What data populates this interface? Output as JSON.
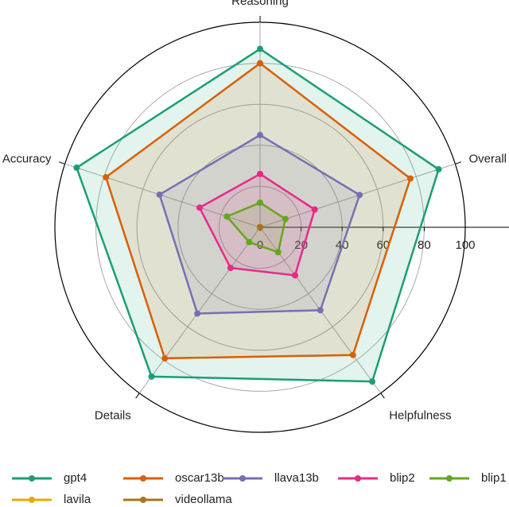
{
  "chart_data": {
    "type": "radar",
    "categories": [
      "Reasoning",
      "Overall",
      "Helpfulness",
      "Details",
      "Accuracy"
    ],
    "rlim": [
      0,
      100
    ],
    "rticks": [
      0,
      20,
      40,
      60,
      80,
      100
    ],
    "grid": true,
    "legend": "bottom",
    "series": [
      {
        "name": "gpt4",
        "color": "#1b9e77",
        "values": [
          87,
          91.5,
          93,
          90,
          94
        ]
      },
      {
        "name": "oscar13b",
        "color": "#d95f02",
        "values": [
          80,
          77,
          77,
          79,
          79
        ]
      },
      {
        "name": "llava13b",
        "color": "#7570b3",
        "values": [
          45,
          51,
          50,
          52,
          51.5
        ]
      },
      {
        "name": "blip2",
        "color": "#e7298a",
        "values": [
          26,
          28,
          29,
          24.5,
          31
        ]
      },
      {
        "name": "blip1",
        "color": "#66a61e",
        "values": [
          12,
          13,
          15,
          9,
          17
        ]
      },
      {
        "name": "lavila",
        "color": "#e6ab02",
        "values": [
          0,
          0,
          0,
          0,
          0
        ]
      },
      {
        "name": "videollama",
        "color": "#a6761d",
        "values": [
          0,
          0,
          0,
          0,
          0
        ]
      }
    ]
  }
}
